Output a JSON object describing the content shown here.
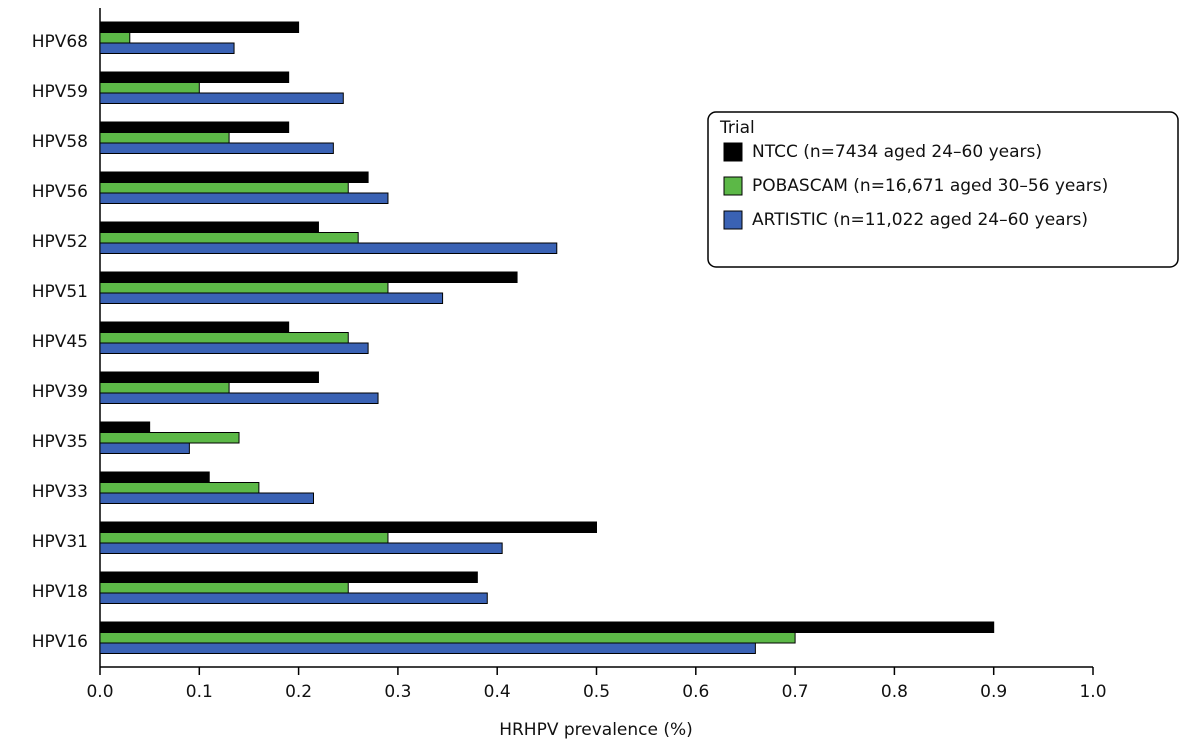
{
  "chart_data": {
    "type": "hbar",
    "x_label": "HRHPV prevalence (%)",
    "categories": [
      "HPV68",
      "HPV59",
      "HPV58",
      "HPV56",
      "HPV52",
      "HPV51",
      "HPV45",
      "HPV39",
      "HPV35",
      "HPV33",
      "HPV31",
      "HPV18",
      "HPV16"
    ],
    "legend_title": "Trial",
    "legend_position": "upper right",
    "series": [
      {
        "name": "NTCC (n=7434 aged 24–60 years)",
        "color": "#000000",
        "values": [
          0.2,
          0.19,
          0.19,
          0.27,
          0.22,
          0.42,
          0.19,
          0.22,
          0.05,
          0.11,
          0.5,
          0.38,
          0.9
        ]
      },
      {
        "name": "POBASCAM (n=16,671 aged 30–56 years)",
        "color": "#5cb847",
        "values": [
          0.03,
          0.1,
          0.13,
          0.25,
          0.26,
          0.29,
          0.25,
          0.13,
          0.14,
          0.16,
          0.29,
          0.25,
          0.7
        ]
      },
      {
        "name": "ARTISTIC (n=11,022 aged 24–60 years)",
        "color": "#3a62b4",
        "values": [
          0.135,
          0.245,
          0.235,
          0.29,
          0.46,
          0.345,
          0.27,
          0.28,
          0.09,
          0.215,
          0.405,
          0.39,
          0.66
        ]
      }
    ],
    "xlim": [
      0,
      1.0
    ],
    "xticks": [
      {
        "value": 0,
        "label": "0.0"
      },
      0.1,
      0.2,
      0.3,
      0.4,
      0.5,
      0.6,
      0.7,
      0.8,
      0.9,
      {
        "value": 1.0,
        "label": "1.0"
      }
    ]
  }
}
